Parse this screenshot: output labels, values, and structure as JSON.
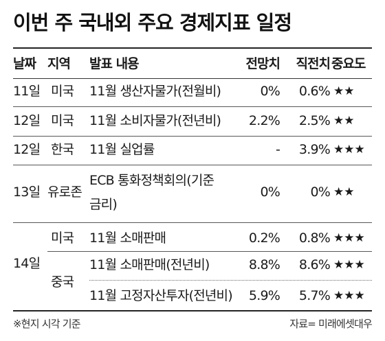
{
  "title": "이번 주 국내외 주요 경제지표 일정",
  "headers": {
    "date": "날짜",
    "region": "지역",
    "content": "발표 내용",
    "forecast": "전망치",
    "previous": "직전치",
    "importance": "중요도"
  },
  "rows": [
    {
      "date": "11일",
      "region": "미국",
      "content": "11월 생산자물가(전월비)",
      "forecast": "0%",
      "previous": "0.6%",
      "importance": "★★"
    },
    {
      "date": "12일",
      "region": "미국",
      "content": "11월 소비자물가(전년비)",
      "forecast": "2.2%",
      "previous": "2.5%",
      "importance": "★★"
    },
    {
      "date": "12일",
      "region": "한국",
      "content": "11월 실업률",
      "forecast": "-",
      "previous": "3.9%",
      "importance": "★★★"
    },
    {
      "date": "13일",
      "region": "유로존",
      "content_line1": "ECB 통화정책회의(기준",
      "content_line2": "금리)",
      "forecast": "0%",
      "previous": "0%",
      "importance": "★★"
    },
    {
      "date": "14일",
      "region": "미국",
      "content": "11월 소매판매",
      "forecast": "0.2%",
      "previous": "0.8%",
      "importance": "★★★"
    },
    {
      "region": "중국",
      "content": "11월 소매판매(전년비)",
      "forecast": "8.8%",
      "previous": "8.6%",
      "importance": "★★★"
    },
    {
      "content": "11월 고정자산투자(전년비)",
      "forecast": "5.9%",
      "previous": "5.7%",
      "importance": "★★★"
    }
  ],
  "footer": {
    "note": "※현지 시각 기준",
    "source": "자료= 미래에셋대우"
  }
}
